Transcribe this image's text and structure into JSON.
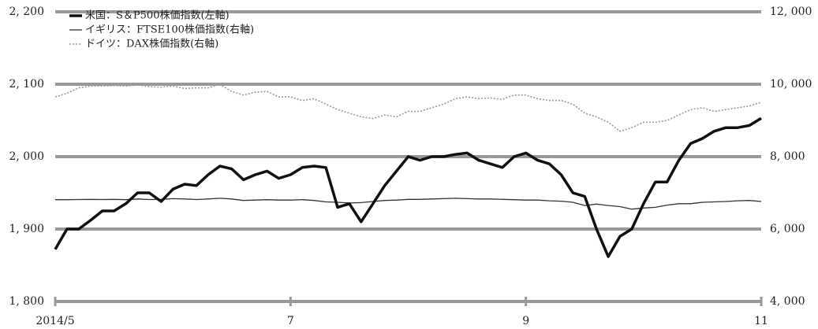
{
  "chart_data": {
    "type": "line",
    "x": [
      5.0,
      5.1,
      5.2,
      5.3,
      5.4,
      5.5,
      5.6,
      5.7,
      5.8,
      5.9,
      6.0,
      6.1,
      6.2,
      6.3,
      6.4,
      6.5,
      6.6,
      6.7,
      6.8,
      6.9,
      7.0,
      7.1,
      7.2,
      7.3,
      7.4,
      7.5,
      7.6,
      7.7,
      7.8,
      7.9,
      8.0,
      8.1,
      8.2,
      8.3,
      8.4,
      8.5,
      8.6,
      8.7,
      8.8,
      8.9,
      9.0,
      9.1,
      9.2,
      9.3,
      9.4,
      9.5,
      9.6,
      9.7,
      9.8,
      9.9,
      10.0,
      10.1,
      10.2,
      10.3,
      10.4,
      10.5,
      10.6,
      10.7,
      10.8,
      10.9,
      11.0
    ],
    "xlim": [
      5,
      11
    ],
    "xticks": [
      {
        "value": 5,
        "label": "2014/5"
      },
      {
        "value": 7,
        "label": "7"
      },
      {
        "value": 9,
        "label": "9"
      },
      {
        "value": 11,
        "label": "11"
      }
    ],
    "ylim": [
      1800,
      2200
    ],
    "yticks": [
      {
        "value": 1800,
        "label": "1, 800"
      },
      {
        "value": 1900,
        "label": "1, 900"
      },
      {
        "value": 2000,
        "label": "2, 000"
      },
      {
        "value": 2100,
        "label": "2, 100"
      },
      {
        "value": 2200,
        "label": "2, 200"
      }
    ],
    "y2lim": [
      4000,
      12000
    ],
    "y2ticks": [
      {
        "value": 4000,
        "label": "4, 000"
      },
      {
        "value": 6000,
        "label": "6, 000"
      },
      {
        "value": 8000,
        "label": "8, 000"
      },
      {
        "value": 10000,
        "label": "10, 000"
      },
      {
        "value": 12000,
        "label": "12, 000"
      }
    ],
    "grid": true,
    "legend": "upper left",
    "series": [
      {
        "name": "米国：S＆P500株価指数(左軸)",
        "color": "#111111",
        "line_width": 3.5,
        "line_style": "solid",
        "values": [
          1872,
          1900,
          1900,
          1912,
          1925,
          1925,
          1935,
          1950,
          1950,
          1938,
          1955,
          1962,
          1960,
          1975,
          1987,
          1983,
          1968,
          1975,
          1980,
          1970,
          1975,
          1985,
          1987,
          1985,
          1930,
          1935,
          1910,
          1935,
          1960,
          1980,
          2000,
          1995,
          2000,
          2000,
          2003,
          2005,
          1995,
          1990,
          1985,
          2000,
          2005,
          1995,
          1990,
          1975,
          1950,
          1945,
          1900,
          1862,
          1890,
          1900,
          1935,
          1965,
          1965,
          1995,
          2018,
          2025,
          2035,
          2040,
          2040,
          2043,
          2053
        ]
      },
      {
        "name": "イギリス：FTSE100株価指数(右軸)",
        "color": "#333333",
        "line_width": 1.3,
        "line_style": "solid",
        "axis": "y2",
        "values": [
          6810,
          6810,
          6815,
          6820,
          6815,
          6820,
          6810,
          6830,
          6815,
          6820,
          6840,
          6830,
          6815,
          6830,
          6850,
          6830,
          6790,
          6800,
          6810,
          6800,
          6800,
          6810,
          6790,
          6750,
          6740,
          6720,
          6730,
          6760,
          6790,
          6800,
          6820,
          6820,
          6830,
          6840,
          6850,
          6840,
          6830,
          6830,
          6820,
          6810,
          6800,
          6800,
          6780,
          6770,
          6740,
          6650,
          6690,
          6650,
          6620,
          6550,
          6580,
          6600,
          6660,
          6700,
          6700,
          6740,
          6750,
          6760,
          6780,
          6790,
          6760
        ]
      },
      {
        "name": "ドイツ：DAX株価指数(右軸)",
        "color": "#999999",
        "line_width": 1.6,
        "line_style": "dotted",
        "axis": "y2",
        "values": [
          9650,
          9750,
          9900,
          9950,
          9950,
          9960,
          9950,
          9980,
          9930,
          9920,
          9950,
          9880,
          9900,
          9900,
          10000,
          9800,
          9700,
          9780,
          9800,
          9650,
          9650,
          9550,
          9600,
          9450,
          9300,
          9200,
          9100,
          9050,
          9150,
          9100,
          9250,
          9250,
          9350,
          9450,
          9600,
          9650,
          9600,
          9620,
          9580,
          9700,
          9700,
          9600,
          9550,
          9550,
          9450,
          9200,
          9100,
          8950,
          8700,
          8800,
          8950,
          8950,
          9000,
          9150,
          9300,
          9350,
          9250,
          9300,
          9350,
          9400,
          9500
        ]
      }
    ]
  }
}
